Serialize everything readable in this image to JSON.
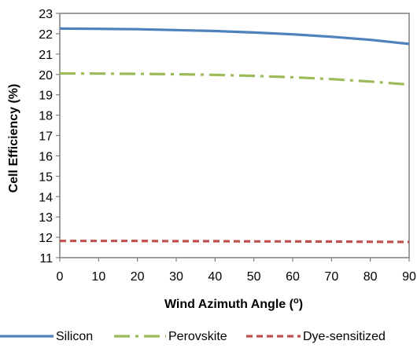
{
  "chart_data": {
    "type": "line",
    "xlabel": "Wind Azimuth Angle (o)",
    "ylabel": "Cell Efficiency (%)",
    "xlim": [
      0,
      90
    ],
    "ylim": [
      11,
      23
    ],
    "xticks": [
      "0",
      "10",
      "20",
      "30",
      "40",
      "50",
      "60",
      "70",
      "80",
      "90"
    ],
    "yticks": [
      "11",
      "12",
      "13",
      "14",
      "15",
      "16",
      "17",
      "18",
      "19",
      "20",
      "21",
      "22",
      "23"
    ],
    "grid": false,
    "legend_position": "bottom",
    "series": [
      {
        "name": "Silicon",
        "color": "#4F81BD",
        "dash": "solid",
        "x": [
          0,
          10,
          20,
          30,
          40,
          50,
          60,
          70,
          80,
          90
        ],
        "y": [
          22.25,
          22.24,
          22.22,
          22.18,
          22.13,
          22.06,
          21.97,
          21.85,
          21.7,
          21.5
        ]
      },
      {
        "name": "Perovskite",
        "color": "#9BBB59",
        "dash": "dash-dot",
        "x": [
          0,
          10,
          20,
          30,
          40,
          50,
          60,
          70,
          80,
          90
        ],
        "y": [
          20.05,
          20.04,
          20.03,
          20.01,
          19.98,
          19.93,
          19.86,
          19.77,
          19.65,
          19.5
        ]
      },
      {
        "name": "Dye-sensitized",
        "color": "#C0504D",
        "dash": "dashed",
        "x": [
          0,
          10,
          20,
          30,
          40,
          50,
          60,
          70,
          80,
          90
        ],
        "y": [
          11.82,
          11.82,
          11.82,
          11.81,
          11.81,
          11.8,
          11.8,
          11.79,
          11.78,
          11.77
        ]
      }
    ]
  }
}
